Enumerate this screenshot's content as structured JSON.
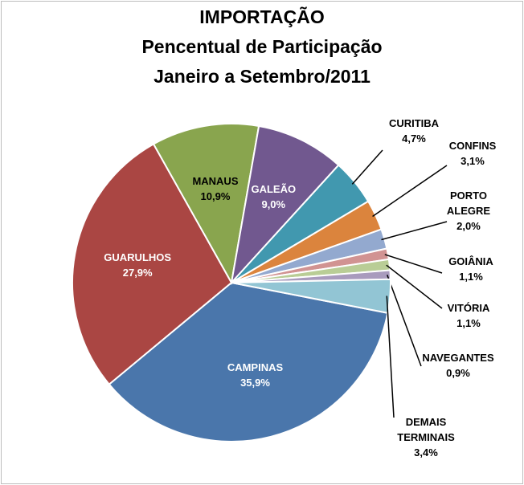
{
  "chart_data": {
    "type": "pie",
    "title": [
      "IMPORTAÇÃO",
      "Pencentual de Participação",
      "Janeiro a Setembro/2011"
    ],
    "categories": [
      "CAMPINAS",
      "GUARULHOS",
      "MANAUS",
      "GALEÃO",
      "CURITIBA",
      "CONFINS",
      "PORTO ALEGRE",
      "GOIÂNIA",
      "VITÓRIA",
      "NAVEGANTES",
      "DEMAIS TERMINAIS"
    ],
    "values": [
      35.9,
      27.9,
      10.9,
      9.0,
      4.7,
      3.1,
      2.0,
      1.1,
      1.1,
      0.9,
      3.4
    ],
    "value_labels": [
      "35,9%",
      "27,9%",
      "10,9%",
      "9,0%",
      "4,7%",
      "3,1%",
      "2,0%",
      "1,1%",
      "1,1%",
      "0,9%",
      "3,4%"
    ],
    "colors": [
      "#4a76ab",
      "#aa4643",
      "#89a54e",
      "#71588f",
      "#4198af",
      "#db843d",
      "#93a9cf",
      "#d19392",
      "#b9cd96",
      "#a99bbd",
      "#92c5d4"
    ]
  }
}
